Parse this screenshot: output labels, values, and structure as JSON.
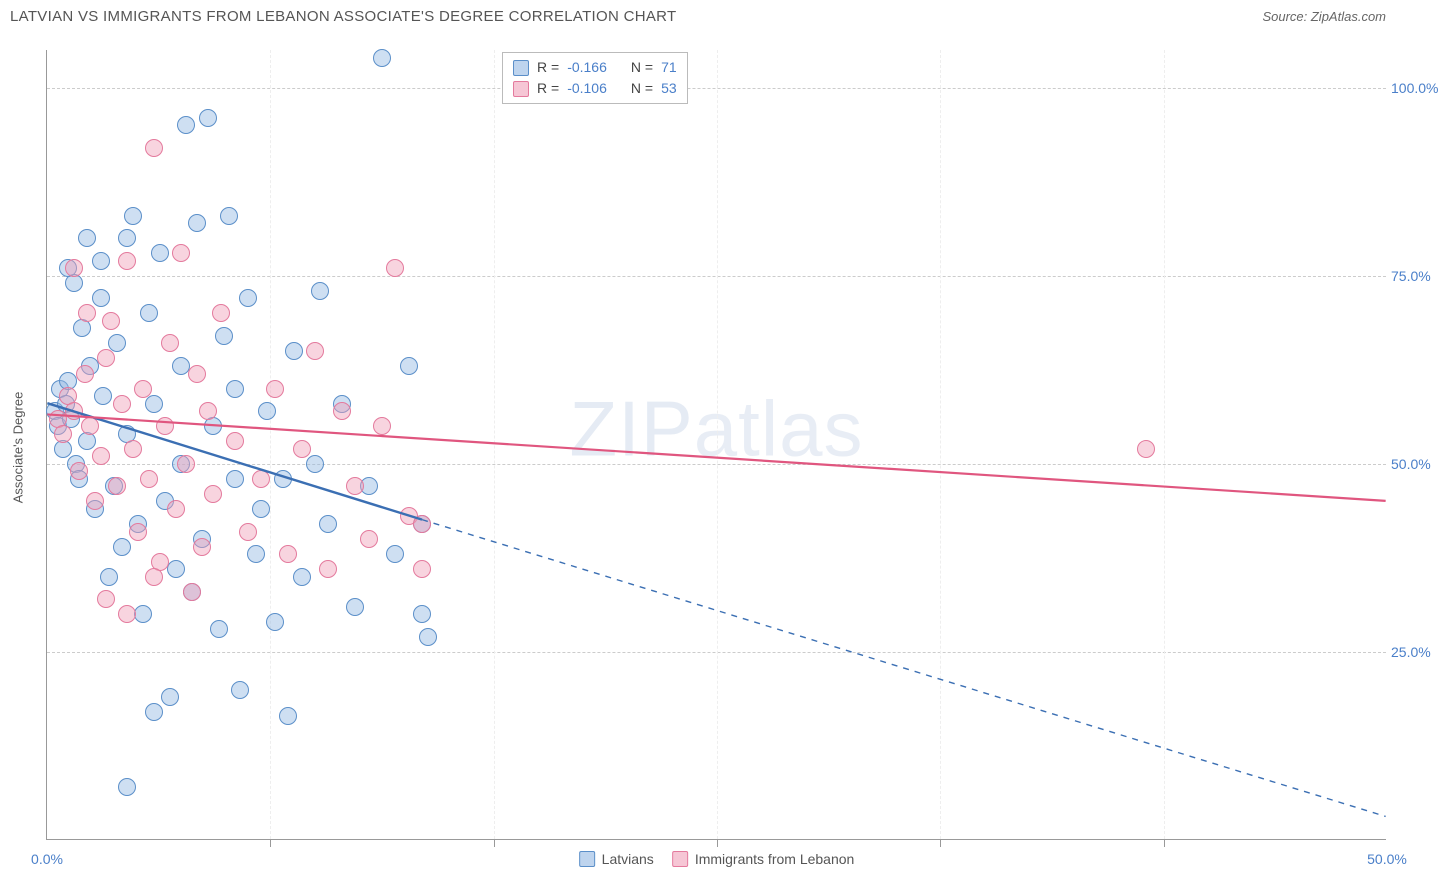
{
  "title": "LATVIAN VS IMMIGRANTS FROM LEBANON ASSOCIATE'S DEGREE CORRELATION CHART",
  "source": "Source: ZipAtlas.com",
  "y_axis_title": "Associate's Degree",
  "watermark_strong": "ZIP",
  "watermark_thin": "atlas",
  "chart": {
    "type": "scatter",
    "xlim": [
      0,
      50
    ],
    "ylim": [
      0,
      105
    ],
    "x_ticks": [
      0,
      50
    ],
    "x_tick_labels": [
      "0.0%",
      "50.0%"
    ],
    "x_minor_ticks": [
      8.33,
      16.67,
      25,
      33.33,
      41.67
    ],
    "y_ticks": [
      25,
      50,
      75,
      100
    ],
    "y_tick_labels": [
      "25.0%",
      "50.0%",
      "75.0%",
      "100.0%"
    ],
    "background_color": "#ffffff",
    "grid_color": "#cccccc"
  },
  "series": [
    {
      "name": "Latvians",
      "color_fill": "rgba(147,183,227,0.45)",
      "color_stroke": "#5b8fc9",
      "R": "-0.166",
      "N": "71",
      "trend": {
        "x1": 0,
        "y1": 58,
        "x2": 14,
        "y2": 42.5,
        "x2_ext": 50,
        "y2_ext": 3,
        "stroke": "#3b6fb3",
        "width": 2.4
      },
      "points": [
        [
          0.3,
          57
        ],
        [
          0.4,
          55
        ],
        [
          0.5,
          60
        ],
        [
          0.6,
          52
        ],
        [
          0.7,
          58
        ],
        [
          0.8,
          61
        ],
        [
          0.9,
          56
        ],
        [
          1.0,
          74
        ],
        [
          1.1,
          50
        ],
        [
          1.2,
          48
        ],
        [
          1.3,
          68
        ],
        [
          1.5,
          53
        ],
        [
          1.6,
          63
        ],
        [
          1.8,
          44
        ],
        [
          2.0,
          72
        ],
        [
          2.1,
          59
        ],
        [
          2.3,
          35
        ],
        [
          2.5,
          47
        ],
        [
          2.6,
          66
        ],
        [
          2.8,
          39
        ],
        [
          3.0,
          80
        ],
        [
          3.0,
          54
        ],
        [
          3.2,
          83
        ],
        [
          3.4,
          42
        ],
        [
          3.6,
          30
        ],
        [
          3.8,
          70
        ],
        [
          4.0,
          17
        ],
        [
          4.0,
          58
        ],
        [
          4.2,
          78
        ],
        [
          4.4,
          45
        ],
        [
          4.6,
          19
        ],
        [
          4.8,
          36
        ],
        [
          5.0,
          63
        ],
        [
          5.0,
          50
        ],
        [
          5.2,
          95
        ],
        [
          5.4,
          33
        ],
        [
          5.6,
          82
        ],
        [
          5.8,
          40
        ],
        [
          6.0,
          96
        ],
        [
          6.2,
          55
        ],
        [
          6.4,
          28
        ],
        [
          6.6,
          67
        ],
        [
          6.8,
          83
        ],
        [
          7.0,
          48
        ],
        [
          7.0,
          60
        ],
        [
          7.2,
          20
        ],
        [
          7.5,
          72
        ],
        [
          7.8,
          38
        ],
        [
          8.0,
          44
        ],
        [
          8.2,
          57
        ],
        [
          8.5,
          29
        ],
        [
          8.8,
          48
        ],
        [
          9.0,
          16.5
        ],
        [
          9.2,
          65
        ],
        [
          9.5,
          35
        ],
        [
          10.0,
          50
        ],
        [
          10.2,
          73
        ],
        [
          10.5,
          42
        ],
        [
          11.0,
          58
        ],
        [
          11.5,
          31
        ],
        [
          12.0,
          47
        ],
        [
          12.5,
          104
        ],
        [
          13.0,
          38
        ],
        [
          13.5,
          63
        ],
        [
          14.0,
          42
        ],
        [
          14.0,
          30
        ],
        [
          14.2,
          27
        ],
        [
          3.0,
          7
        ],
        [
          2.0,
          77
        ],
        [
          1.5,
          80
        ],
        [
          0.8,
          76
        ]
      ]
    },
    {
      "name": "Immigrants from Lebanon",
      "color_fill": "rgba(240,160,185,0.45)",
      "color_stroke": "#e47a9d",
      "R": "-0.106",
      "N": "53",
      "trend": {
        "x1": 0,
        "y1": 56.5,
        "x2": 50,
        "y2": 45,
        "stroke": "#e0567f",
        "width": 2.2
      },
      "points": [
        [
          0.4,
          56
        ],
        [
          0.6,
          54
        ],
        [
          0.8,
          59
        ],
        [
          1.0,
          57
        ],
        [
          1.2,
          49
        ],
        [
          1.4,
          62
        ],
        [
          1.6,
          55
        ],
        [
          1.8,
          45
        ],
        [
          2.0,
          51
        ],
        [
          2.2,
          64
        ],
        [
          2.4,
          69
        ],
        [
          2.6,
          47
        ],
        [
          2.8,
          58
        ],
        [
          3.0,
          77
        ],
        [
          3.2,
          52
        ],
        [
          3.4,
          41
        ],
        [
          3.6,
          60
        ],
        [
          3.8,
          48
        ],
        [
          4.0,
          92
        ],
        [
          4.2,
          37
        ],
        [
          4.4,
          55
        ],
        [
          4.6,
          66
        ],
        [
          4.8,
          44
        ],
        [
          5.0,
          78
        ],
        [
          5.2,
          50
        ],
        [
          5.4,
          33
        ],
        [
          5.6,
          62
        ],
        [
          5.8,
          39
        ],
        [
          6.0,
          57
        ],
        [
          6.2,
          46
        ],
        [
          6.5,
          70
        ],
        [
          7.0,
          53
        ],
        [
          7.5,
          41
        ],
        [
          8.0,
          48
        ],
        [
          8.5,
          60
        ],
        [
          9.0,
          38
        ],
        [
          9.5,
          52
        ],
        [
          10.0,
          65
        ],
        [
          10.5,
          36
        ],
        [
          11.0,
          57
        ],
        [
          11.5,
          47
        ],
        [
          12.0,
          40
        ],
        [
          12.5,
          55
        ],
        [
          13.0,
          76
        ],
        [
          13.5,
          43
        ],
        [
          14.0,
          36
        ],
        [
          14.0,
          42
        ],
        [
          1.0,
          76
        ],
        [
          1.5,
          70
        ],
        [
          2.2,
          32
        ],
        [
          3.0,
          30
        ],
        [
          4.0,
          35
        ],
        [
          41.0,
          52
        ]
      ]
    }
  ],
  "legend_top": {
    "R_label": "R =",
    "N_label": "N ="
  }
}
